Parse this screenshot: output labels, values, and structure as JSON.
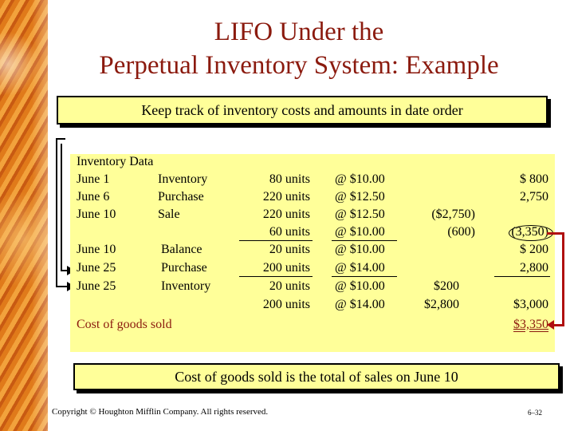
{
  "title_line1": "LIFO Under the",
  "title_line2": "Perpetual Inventory System: Example",
  "top_box": "Keep track of inventory costs and amounts in date order",
  "inventory_header": "Inventory Data",
  "rows": [
    {
      "date": "June 1",
      "desc": "Inventory",
      "units": "80 units",
      "price": "@ $10.00",
      "cost": "",
      "total": "$ 800"
    },
    {
      "date": "June 6",
      "desc": "Purchase",
      "units": "220 units",
      "price": "@ $12.50",
      "cost": "",
      "total": "2,750"
    },
    {
      "date": "June 10",
      "desc": "Sale",
      "units": "220 units",
      "price": "@ $12.50",
      "cost": "($2,750)",
      "total": ""
    },
    {
      "date": "",
      "desc": "",
      "units": "60 units",
      "price": "@ $10.00",
      "cost": "(600)",
      "total": "(3,350)"
    },
    {
      "date": "June 10",
      "desc": "Balance",
      "units": "20 units",
      "price": "@ $10.00",
      "cost": "",
      "total": "$ 200"
    },
    {
      "date": "June 25",
      "desc": "Purchase",
      "units": "200 units",
      "price": "@ $14.00",
      "cost": "",
      "total": "2,800"
    },
    {
      "date": "June 25",
      "desc": "Inventory",
      "units": "20 units",
      "price": "@ $10.00",
      "cost": "$200",
      "total": ""
    },
    {
      "date": "",
      "desc": "",
      "units": "200 units",
      "price": "@ $14.00",
      "cost": "$2,800",
      "total": "$3,000"
    }
  ],
  "cogs_label": "Cost of goods sold",
  "cogs_total": "$3,350",
  "bottom_box": "Cost of goods sold is the total of sales on June 10",
  "copyright": "Copyright © Houghton Mifflin Company.  All rights reserved.",
  "page_number": "6–32"
}
